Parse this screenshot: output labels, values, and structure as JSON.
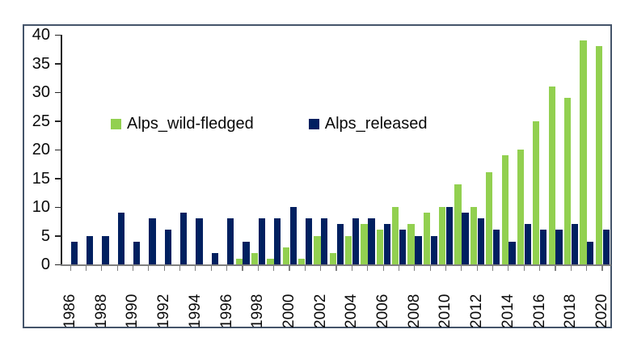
{
  "frame": {
    "border_color": "#44546A",
    "background": "#ffffff"
  },
  "legend": {
    "items": [
      {
        "label": "Alps_wild-fledged",
        "color": "#92D050"
      },
      {
        "label": "Alps_released",
        "color": "#002060"
      }
    ]
  },
  "axis": {
    "y_tick_labels": [
      "0",
      "5",
      "10",
      "15",
      "20",
      "25",
      "30",
      "35",
      "40"
    ],
    "x_tick_labels": [
      "1986",
      "1988",
      "1990",
      "1992",
      "1994",
      "1996",
      "1998",
      "2000",
      "2002",
      "2004",
      "2006",
      "2008",
      "2010",
      "2012",
      "2014",
      "2016",
      "2018",
      "2020"
    ]
  },
  "chart_data": {
    "type": "bar",
    "title": "",
    "xlabel": "",
    "ylabel": "",
    "categories": [
      "1986",
      "1987",
      "1988",
      "1989",
      "1990",
      "1991",
      "1992",
      "1993",
      "1994",
      "1995",
      "1996",
      "1997",
      "1998",
      "1999",
      "2000",
      "2001",
      "2002",
      "2003",
      "2004",
      "2005",
      "2006",
      "2007",
      "2008",
      "2009",
      "2010",
      "2011",
      "2012",
      "2013",
      "2014",
      "2015",
      "2016",
      "2017",
      "2018",
      "2019",
      "2020"
    ],
    "series": [
      {
        "name": "Alps_wild-fledged",
        "color": "#92D050",
        "values": [
          0,
          0,
          0,
          0,
          0,
          0,
          0,
          0,
          0,
          0,
          0,
          1,
          2,
          1,
          3,
          1,
          5,
          2,
          5,
          7,
          6,
          10,
          7,
          9,
          10,
          14,
          10,
          16,
          19,
          20,
          25,
          31,
          29,
          39,
          38
        ]
      },
      {
        "name": "Alps_released",
        "color": "#002060",
        "values": [
          4,
          5,
          5,
          9,
          4,
          8,
          6,
          9,
          8,
          2,
          8,
          4,
          8,
          8,
          10,
          8,
          8,
          7,
          8,
          8,
          7,
          6,
          5,
          5,
          10,
          9,
          8,
          6,
          4,
          7,
          6,
          6,
          7,
          4,
          6
        ]
      }
    ],
    "ylim": [
      0,
      40
    ],
    "ytick_step": 5,
    "xtick_label_every_years": 2,
    "grid": false,
    "legend_position": "top-left-inside",
    "x_labels_rotated_90": true
  }
}
